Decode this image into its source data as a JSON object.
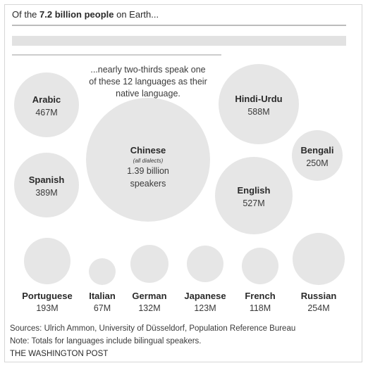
{
  "header": {
    "prefix": "Of the ",
    "highlight": "7.2 billion people",
    "suffix": " on Earth..."
  },
  "note_lines": [
    "...nearly two-thirds speak one",
    "of these 12 languages as their",
    "native language."
  ],
  "chart_data": {
    "type": "bubble",
    "unit": "speakers",
    "total_population": "7.2 billion",
    "bubbles": [
      {
        "name": "Chinese",
        "note": "(all dialects)",
        "label": "1.39 billion",
        "label2": "speakers",
        "value_millions": 1390
      },
      {
        "name": "Hindi-Urdu",
        "label": "588M",
        "value_millions": 588
      },
      {
        "name": "English",
        "label": "527M",
        "value_millions": 527
      },
      {
        "name": "Arabic",
        "label": "467M",
        "value_millions": 467
      },
      {
        "name": "Spanish",
        "label": "389M",
        "value_millions": 389
      },
      {
        "name": "Bengali",
        "label": "250M",
        "value_millions": 250
      },
      {
        "name": "Portuguese",
        "label": "193M",
        "value_millions": 193
      },
      {
        "name": "Italian",
        "label": "67M",
        "value_millions": 67
      },
      {
        "name": "German",
        "label": "132M",
        "value_millions": 132
      },
      {
        "name": "Japanese",
        "label": "123M",
        "value_millions": 123
      },
      {
        "name": "French",
        "label": "118M",
        "value_millions": 118
      },
      {
        "name": "Russian",
        "label": "254M",
        "value_millions": 254
      }
    ]
  },
  "footer": {
    "sources": "Sources: Ulrich Ammon, University of Düsseldorf, Population Reference Bureau",
    "note": "Note: Totals for languages include bilingual speakers.",
    "credit": "THE WASHINGTON POST"
  },
  "colors": {
    "bubble_fill": "#e6e6e6",
    "bar_fill": "#e2e2e2",
    "rule": "#7a7a7a",
    "text": "#2a2a2a"
  }
}
